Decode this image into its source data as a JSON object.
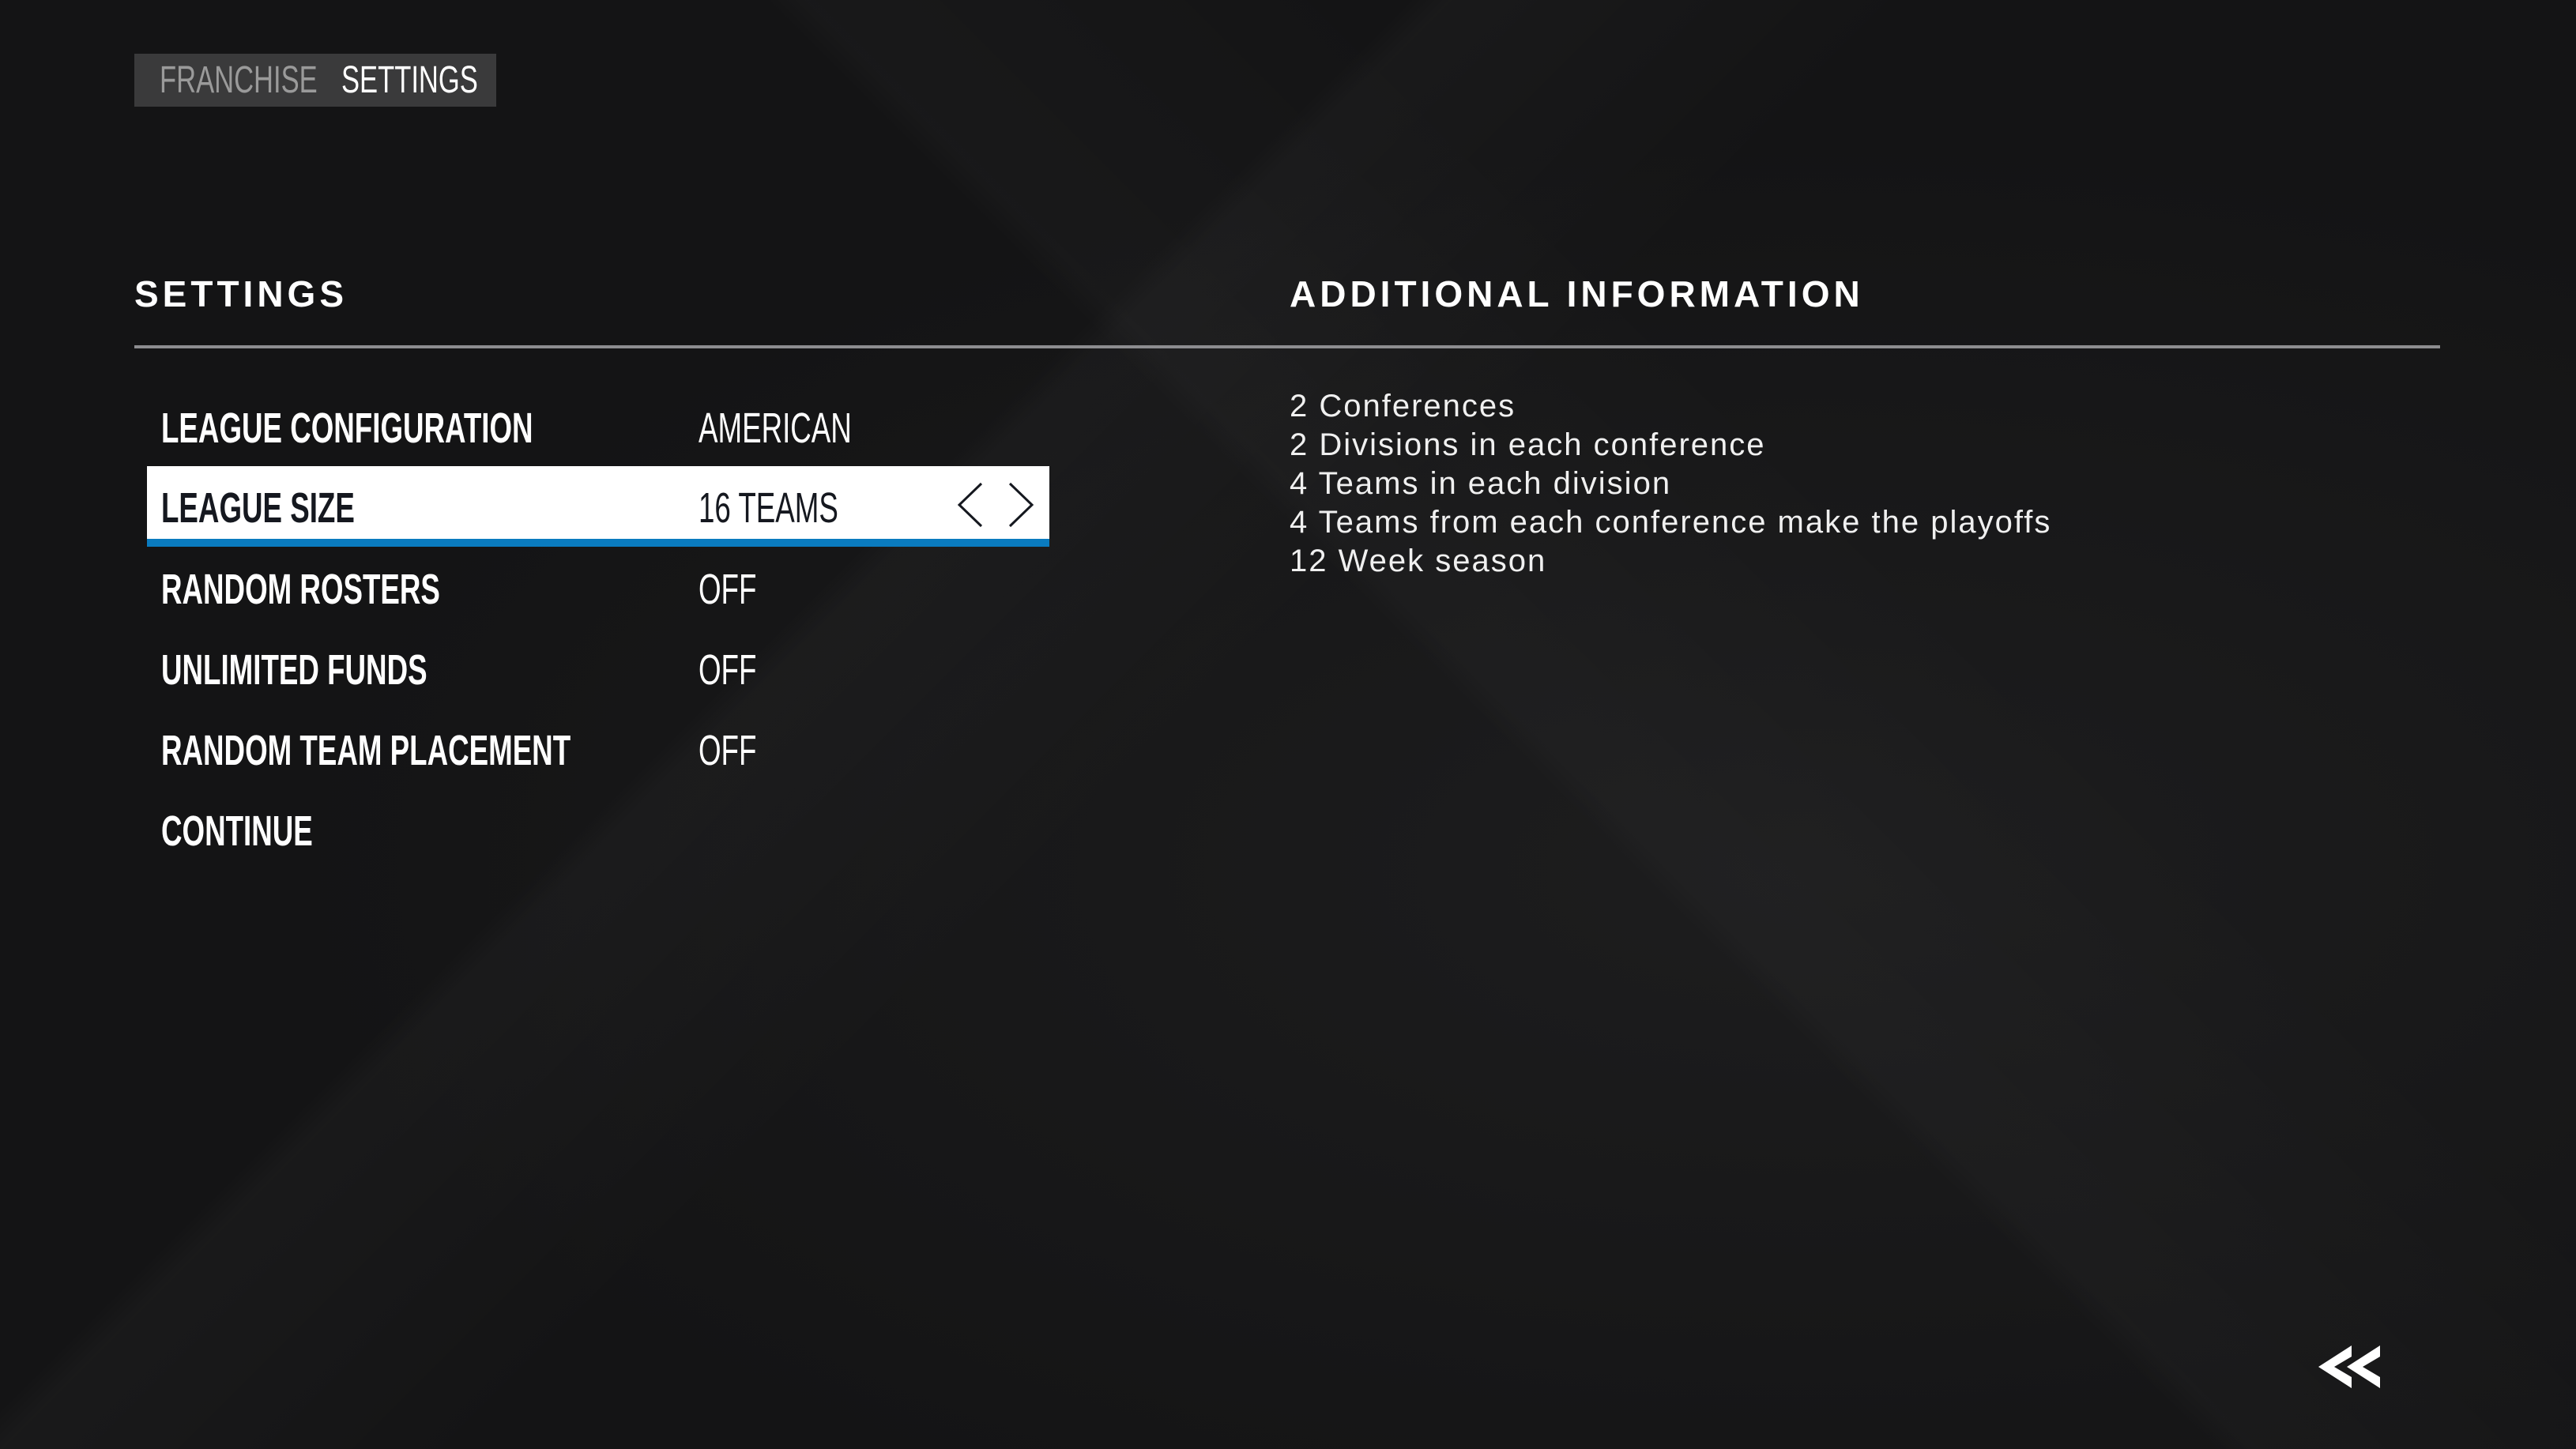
{
  "breadcrumb": {
    "items": [
      "FRANCHISE",
      "SETTINGS"
    ]
  },
  "settings": {
    "title": "SETTINGS",
    "rows": [
      {
        "label": "LEAGUE CONFIGURATION",
        "value": "AMERICAN"
      },
      {
        "label": "LEAGUE SIZE",
        "value": "16 TEAMS",
        "selected": true
      },
      {
        "label": "RANDOM ROSTERS",
        "value": "OFF"
      },
      {
        "label": "UNLIMITED FUNDS",
        "value": "OFF"
      },
      {
        "label": "RANDOM TEAM PLACEMENT",
        "value": "OFF"
      },
      {
        "label": "CONTINUE",
        "value": ""
      }
    ]
  },
  "info": {
    "title": "ADDITIONAL INFORMATION",
    "lines": [
      "2 Conferences",
      "2 Divisions in each conference",
      "4 Teams in each division",
      "4 Teams from each conference make the playoffs",
      "12 Week season"
    ]
  },
  "colors": {
    "accent": "#0a7bbf",
    "background": "#141415",
    "selected_row": "#ffffff"
  },
  "icons": {
    "prev": "chevron-left-icon",
    "next": "chevron-right-icon",
    "back": "double-chevron-back-icon"
  }
}
